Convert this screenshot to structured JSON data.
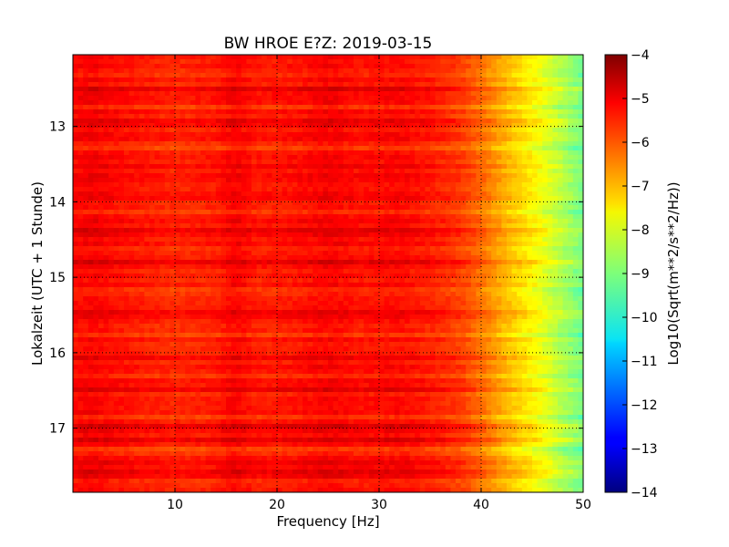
{
  "chart_data": {
    "type": "heatmap",
    "title": "BW HROE E?Z: 2019-03-15",
    "xlabel": "Frequency [Hz]",
    "ylabel": "Lokalzeit (UTC + 1 Stunde)",
    "xlim": [
      0,
      50
    ],
    "ylim": [
      12.05,
      17.85
    ],
    "x_ticks": [
      10,
      20,
      30,
      40,
      50
    ],
    "y_ticks": [
      13,
      14,
      15,
      16,
      17
    ],
    "grid": true,
    "colormap": "jet",
    "colorbar": {
      "label": "Log10(Sqrt(m**2/s**2/Hz))",
      "range": [
        -14,
        -4
      ],
      "ticks": [
        -4,
        -5,
        -6,
        -7,
        -8,
        -9,
        -10,
        -11,
        -12,
        -13,
        -14
      ]
    },
    "frequency_profile": {
      "frequency_hz": [
        0,
        2,
        5,
        10,
        14,
        16,
        18,
        22,
        25,
        28,
        32,
        35,
        38,
        40,
        42,
        44,
        46,
        48,
        50
      ],
      "value": [
        -5.3,
        -5.2,
        -5.4,
        -5.6,
        -5.5,
        -5.2,
        -5.5,
        -5.4,
        -5.2,
        -5.4,
        -5.3,
        -5.5,
        -5.8,
        -6.3,
        -6.9,
        -7.4,
        -7.9,
        -8.5,
        -9.1
      ]
    },
    "time_variation": {
      "dark_time_bands_h": [
        12.5,
        12.95,
        13.55,
        13.95,
        14.4,
        14.8,
        15.45,
        16.05,
        16.5,
        17.0,
        17.15,
        17.45,
        17.6
      ],
      "light_time_bands_h": [
        12.3,
        12.75,
        13.25,
        14.15,
        14.6,
        15.2,
        15.75,
        16.3,
        16.85,
        17.3,
        17.72
      ]
    }
  }
}
